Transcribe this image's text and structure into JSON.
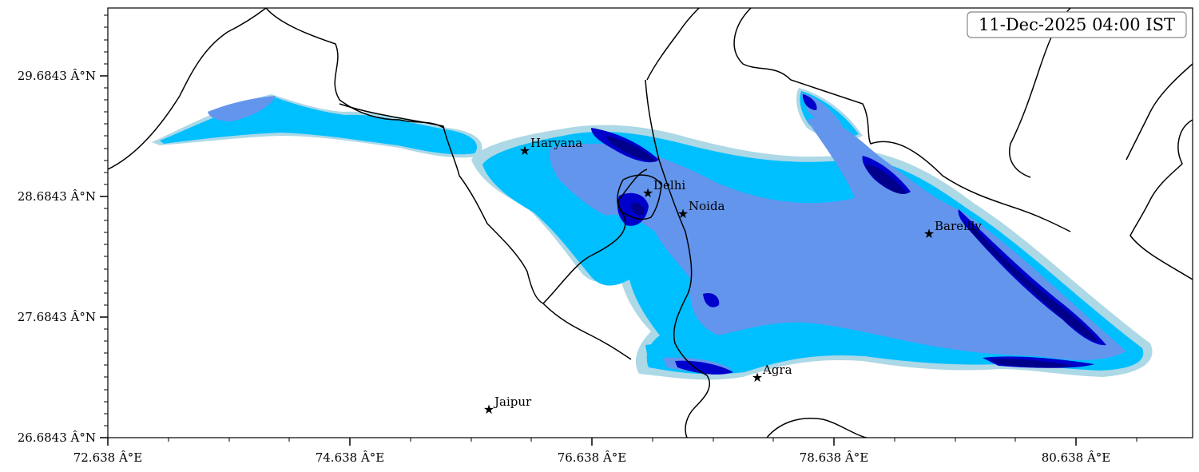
{
  "timestamp": "11-Dec-2025 04:00 IST",
  "axes": {
    "y_ticks": [
      "29.6843 Â°N",
      "28.6843 Â°N",
      "27.6843 Â°N",
      "26.6843 Â°N"
    ],
    "x_ticks": [
      "72.638 Â°E",
      "74.638 Â°E",
      "76.638 Â°E",
      "78.638 Â°E",
      "80.638 Â°E"
    ]
  },
  "cities": [
    {
      "name": "Haryana"
    },
    {
      "name": "Delhi"
    },
    {
      "name": "Noida"
    },
    {
      "name": "Bareilly"
    },
    {
      "name": "Agra"
    },
    {
      "name": "Jaipur"
    }
  ],
  "colors": {
    "level1": "#add8e6",
    "level2": "#00bfff",
    "level3": "#6495ed",
    "level4": "#0000cd",
    "level5": "#00008b",
    "border": "#000000"
  }
}
